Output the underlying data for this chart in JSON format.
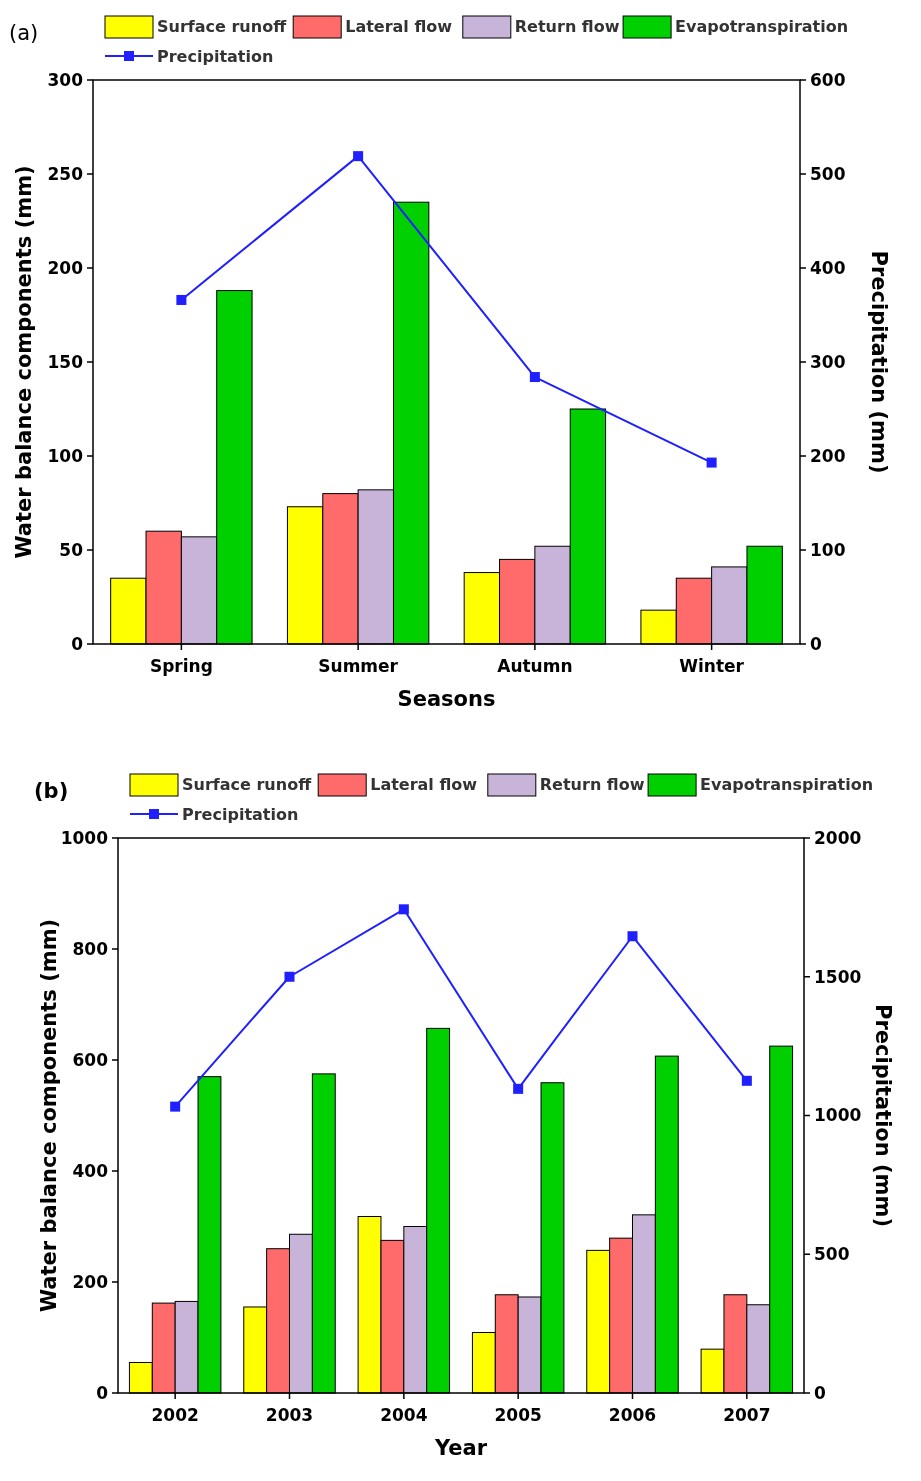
{
  "chart_data": [
    {
      "type": "bar",
      "title": "(a)",
      "categories": [
        "Spring",
        "Summer",
        "Autumn",
        "Winter"
      ],
      "xlabel": "Seasons",
      "ylabel": "Water balance components (mm)",
      "y2label": "Precipitation (mm)",
      "ylim": [
        0,
        300
      ],
      "yticks": [
        0,
        50,
        100,
        150,
        200,
        250,
        300
      ],
      "y2lim": [
        0,
        600
      ],
      "y2ticks": [
        0,
        100,
        200,
        300,
        400,
        500,
        600
      ],
      "legend": "top",
      "grid": false,
      "series": [
        {
          "name": "Surface runoff",
          "color": "#ffff00",
          "values": [
            35,
            73,
            38,
            18
          ]
        },
        {
          "name": "Lateral flow",
          "color": "#ff6b6b",
          "values": [
            60,
            80,
            45,
            35
          ]
        },
        {
          "name": "Return flow",
          "color": "#c8b4d8",
          "values": [
            57,
            82,
            52,
            41
          ]
        },
        {
          "name": "Evapotranspiration",
          "color": "#00d000",
          "values": [
            188,
            235,
            125,
            52
          ]
        },
        {
          "name": "Precipitation",
          "type": "line",
          "axis": "y2",
          "marker": "square",
          "color": "#1f1fff",
          "values": [
            366,
            519,
            284,
            193
          ]
        }
      ]
    },
    {
      "type": "bar",
      "title": "(b)",
      "categories": [
        "2002",
        "2003",
        "2004",
        "2005",
        "2006",
        "2007"
      ],
      "xlabel": "Year",
      "ylabel": "Water balance components (mm)",
      "y2label": "Precipitation (mm)",
      "ylim": [
        0,
        1000
      ],
      "yticks": [
        0,
        200,
        400,
        600,
        800,
        1000
      ],
      "y2lim": [
        0,
        2000
      ],
      "y2ticks": [
        0,
        500,
        1000,
        1500,
        2000
      ],
      "legend": "top",
      "grid": false,
      "series": [
        {
          "name": "Surface runoff",
          "color": "#ffff00",
          "values": [
            55,
            155,
            318,
            109,
            257,
            79
          ]
        },
        {
          "name": "Lateral flow",
          "color": "#ff6b6b",
          "values": [
            162,
            260,
            275,
            177,
            279,
            177
          ]
        },
        {
          "name": "Return flow",
          "color": "#c8b4d8",
          "values": [
            165,
            286,
            300,
            173,
            321,
            159
          ]
        },
        {
          "name": "Evapotranspiration",
          "color": "#00d000",
          "values": [
            570,
            575,
            657,
            559,
            607,
            625
          ]
        },
        {
          "name": "Precipitation",
          "type": "line",
          "axis": "y2",
          "marker": "square",
          "color": "#1f1fff",
          "values": [
            1032,
            1500,
            1743,
            1096,
            1646,
            1125
          ]
        }
      ]
    }
  ]
}
